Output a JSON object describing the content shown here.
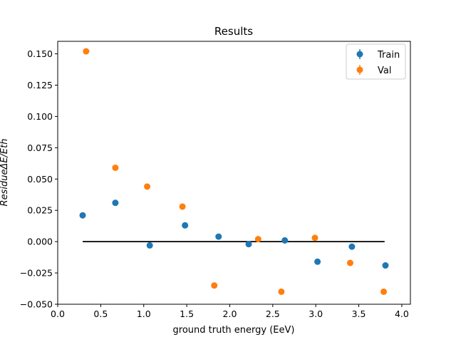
{
  "chart_data": {
    "type": "scatter",
    "title": "Results",
    "xlabel": "ground truth energy (EeV)",
    "ylabel_main": "Residue",
    "ylabel_sub": "ΔE/Eth",
    "xlim": [
      0.0,
      4.1
    ],
    "ylim": [
      -0.05,
      0.16
    ],
    "xticks": [
      0.0,
      0.5,
      1.0,
      1.5,
      2.0,
      2.5,
      3.0,
      3.5,
      4.0
    ],
    "xtick_labels": [
      "0.0",
      "0.5",
      "1.0",
      "1.5",
      "2.0",
      "2.5",
      "3.0",
      "3.5",
      "4.0"
    ],
    "yticks": [
      -0.05,
      -0.025,
      0.0,
      0.025,
      0.05,
      0.075,
      0.1,
      0.125,
      0.15
    ],
    "ytick_labels": [
      "−0.050",
      "−0.025",
      "0.000",
      "0.025",
      "0.050",
      "0.075",
      "0.100",
      "0.125",
      "0.150"
    ],
    "legend_position": "top-right",
    "reference_line": {
      "x": [
        0.29,
        3.8
      ],
      "y": [
        0.0,
        0.0
      ],
      "color": "#000000"
    },
    "series": [
      {
        "name": "Train",
        "color": "#1f77b4",
        "x": [
          0.29,
          0.67,
          1.07,
          1.48,
          1.87,
          2.22,
          2.64,
          3.02,
          3.42,
          3.81
        ],
        "y": [
          0.021,
          0.031,
          -0.003,
          0.013,
          0.004,
          -0.002,
          0.001,
          -0.016,
          -0.004,
          -0.019
        ]
      },
      {
        "name": "Val",
        "color": "#ff7f0e",
        "x": [
          0.33,
          0.67,
          1.04,
          1.45,
          1.82,
          2.33,
          2.6,
          2.99,
          3.4,
          3.79
        ],
        "y": [
          0.152,
          0.059,
          0.044,
          0.028,
          -0.035,
          0.002,
          -0.04,
          0.003,
          -0.017,
          -0.04
        ]
      }
    ]
  }
}
